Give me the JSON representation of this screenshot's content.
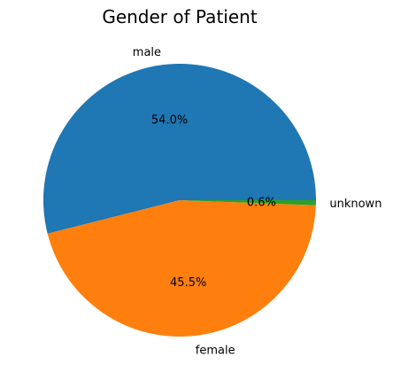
{
  "chart_data": {
    "type": "pie",
    "title": "Gender of Patient",
    "start_angle_deg": 0,
    "direction": "counterclockwise",
    "slices": [
      {
        "label": "male",
        "value": 54.0,
        "percent_label": "54.0%",
        "color": "#1f77b4"
      },
      {
        "label": "female",
        "value": 45.5,
        "percent_label": "45.5%",
        "color": "#ff7f0e"
      },
      {
        "label": "unknown",
        "value": 0.6,
        "percent_label": "0.6%",
        "color": "#2ca02c"
      }
    ]
  }
}
